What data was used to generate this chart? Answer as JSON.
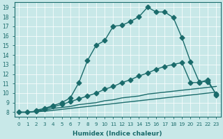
{
  "xlabel": "Humidex (Indice chaleur)",
  "xlim": [
    -0.5,
    23.5
  ],
  "ylim": [
    7.5,
    19.5
  ],
  "xticks": [
    0,
    1,
    2,
    3,
    4,
    5,
    6,
    7,
    8,
    9,
    10,
    11,
    12,
    13,
    14,
    15,
    16,
    17,
    18,
    19,
    20,
    21,
    22,
    23
  ],
  "yticks": [
    8,
    9,
    10,
    11,
    12,
    13,
    14,
    15,
    16,
    17,
    18,
    19
  ],
  "bg_color": "#c8e8e8",
  "line_color": "#1a6b6b",
  "line_top_x": [
    2,
    3,
    4,
    5,
    6,
    7,
    8,
    9,
    10,
    11,
    12,
    13,
    14,
    15,
    16,
    17,
    18,
    19,
    20,
    21,
    22,
    23
  ],
  "line_top_y": [
    8.2,
    8.4,
    8.7,
    9.0,
    9.5,
    11.1,
    13.4,
    15.0,
    15.5,
    17.0,
    17.1,
    17.5,
    18.0,
    19.0,
    18.5,
    18.5,
    17.9,
    15.8,
    13.3,
    11.2,
    11.2,
    9.9
  ],
  "line_mid_x": [
    0,
    1,
    2,
    3,
    4,
    5,
    6,
    7,
    8,
    9,
    10,
    11,
    12,
    13,
    14,
    15,
    16,
    17,
    18,
    19,
    20,
    21,
    22,
    23
  ],
  "line_mid_y": [
    8,
    8,
    8.1,
    8.3,
    8.6,
    8.8,
    9.1,
    9.4,
    9.7,
    10.0,
    10.4,
    10.7,
    11.1,
    11.4,
    11.8,
    12.1,
    12.5,
    12.8,
    13.0,
    13.2,
    11.1,
    11.1,
    11.4,
    9.8
  ],
  "line_flat1_x": [
    0,
    1,
    2,
    3,
    4,
    5,
    6,
    7,
    8,
    9,
    10,
    11,
    12,
    13,
    14,
    15,
    16,
    17,
    18,
    19,
    20,
    21,
    22,
    23
  ],
  "line_flat1_y": [
    8,
    8,
    8.1,
    8.2,
    8.4,
    8.5,
    8.6,
    8.8,
    8.9,
    9.0,
    9.2,
    9.3,
    9.5,
    9.6,
    9.7,
    9.9,
    10.0,
    10.1,
    10.2,
    10.3,
    10.4,
    10.5,
    10.6,
    10.7
  ],
  "line_flat2_x": [
    0,
    1,
    2,
    3,
    4,
    5,
    6,
    7,
    8,
    9,
    10,
    11,
    12,
    13,
    14,
    15,
    16,
    17,
    18,
    19,
    20,
    21,
    22,
    23
  ],
  "line_flat2_y": [
    8,
    8,
    8.05,
    8.1,
    8.2,
    8.3,
    8.4,
    8.5,
    8.6,
    8.7,
    8.8,
    8.9,
    9.0,
    9.1,
    9.2,
    9.3,
    9.4,
    9.5,
    9.6,
    9.7,
    9.8,
    9.9,
    10.0,
    10.1
  ],
  "top_marker_x": [
    5,
    6,
    7,
    8,
    9,
    10,
    11,
    12,
    13,
    14,
    15,
    16,
    17,
    18,
    19,
    20,
    21,
    22,
    23
  ],
  "top_marker_y": [
    9.0,
    9.5,
    11.1,
    13.4,
    15.0,
    15.5,
    17.0,
    17.1,
    17.5,
    18.0,
    19.0,
    18.5,
    18.5,
    17.9,
    15.8,
    13.3,
    11.2,
    11.2,
    9.9
  ],
  "mid_marker_x": [
    19,
    20,
    21,
    22,
    23
  ],
  "mid_marker_y": [
    13.2,
    11.1,
    11.1,
    11.4,
    9.8
  ],
  "marker_size": 3.5,
  "lw": 1.0
}
